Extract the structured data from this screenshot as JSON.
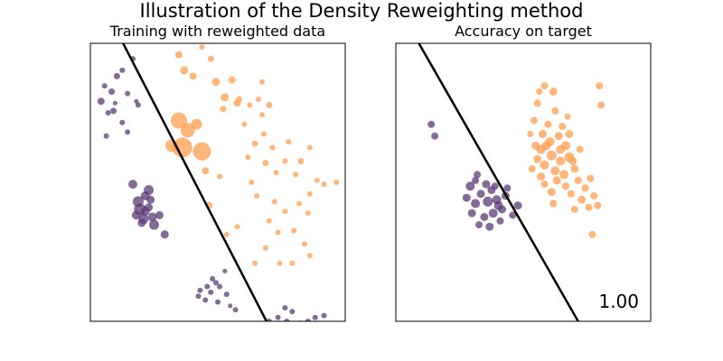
{
  "figure": {
    "suptitle": "Illustration of the Density Reweighting method"
  },
  "colors": {
    "class_0": "#5b3a76",
    "class_1": "#fd9d4f",
    "boundary": "#000000"
  },
  "chart_data": [
    {
      "type": "scatter",
      "title": "Training with reweighted data",
      "xlim": [
        -3.6,
        3.6
      ],
      "ylim": [
        -3.6,
        3.6
      ],
      "grid": false,
      "axes_visible": false,
      "decision_boundary": [
        [
          -2.9,
          4.0
        ],
        [
          1.6,
          -4.0
        ]
      ],
      "series": [
        {
          "class": 0,
          "points": [
            [
              -3.3,
              2.1,
              8
            ],
            [
              -3.2,
              2.5,
              6
            ],
            [
              -3.0,
              2.35,
              7
            ],
            [
              -2.9,
              2.05,
              5
            ],
            [
              -2.85,
              2.75,
              7
            ],
            [
              -2.7,
              2.9,
              6
            ],
            [
              -2.4,
              3.2,
              6
            ],
            [
              -2.25,
              2.0,
              6
            ],
            [
              -3.1,
              1.8,
              6
            ],
            [
              -2.7,
              1.55,
              6
            ],
            [
              -3.15,
              1.2,
              6
            ],
            [
              -2.95,
              1.85,
              7
            ],
            [
              -2.55,
              2.3,
              6
            ],
            [
              -2.3,
              2.1,
              5
            ],
            [
              -2.55,
              1.3,
              6
            ],
            [
              -2.4,
              -0.05,
              10
            ],
            [
              -1.95,
              -0.2,
              11
            ],
            [
              -2.25,
              -0.5,
              12
            ],
            [
              -2.05,
              -0.35,
              10
            ],
            [
              -2.2,
              -0.7,
              13
            ],
            [
              -2.1,
              -0.95,
              11
            ],
            [
              -1.85,
              -0.9,
              10
            ],
            [
              -2.15,
              -1.05,
              9
            ],
            [
              -1.65,
              -0.85,
              9
            ],
            [
              -2.3,
              -0.85,
              10
            ],
            [
              -1.95,
              -0.65,
              9
            ],
            [
              -1.8,
              -1.1,
              11
            ],
            [
              -1.5,
              -1.35,
              9
            ],
            [
              -2.05,
              -0.75,
              10
            ],
            [
              -1.9,
              -0.45,
              9
            ],
            [
              -0.5,
              -2.8,
              6
            ],
            [
              -0.15,
              -2.5,
              6
            ],
            [
              0.05,
              -2.7,
              6
            ],
            [
              -0.35,
              -3.05,
              6
            ],
            [
              0.0,
              -3.1,
              6
            ],
            [
              -0.2,
              -2.85,
              6
            ],
            [
              -0.55,
              -2.95,
              6
            ],
            [
              0.25,
              -2.9,
              6
            ],
            [
              -0.05,
              -2.6,
              6
            ],
            [
              -0.3,
              -2.7,
              6
            ],
            [
              0.35,
              -3.2,
              5
            ],
            [
              -0.1,
              -3.7,
              6
            ],
            [
              0.2,
              -2.3,
              5
            ],
            [
              0.5,
              -3.3,
              6
            ],
            [
              1.7,
              -3.5,
              6
            ],
            [
              1.95,
              -3.6,
              6
            ],
            [
              2.1,
              -3.35,
              6
            ],
            [
              2.3,
              -3.65,
              6
            ],
            [
              2.55,
              -3.6,
              6
            ],
            [
              2.75,
              -3.5,
              6
            ],
            [
              3.0,
              -3.45,
              6
            ],
            [
              2.6,
              -3.85,
              6
            ],
            [
              2.05,
              -3.9,
              6
            ],
            [
              2.8,
              -3.8,
              6
            ],
            [
              2.95,
              -3.7,
              6
            ],
            [
              2.5,
              -3.75,
              6
            ],
            [
              1.45,
              -3.6,
              6
            ],
            [
              1.9,
              -3.25,
              6
            ]
          ]
        },
        {
          "class": 1,
          "points": [
            [
              -1.1,
              3.3,
              8
            ],
            [
              -0.95,
              2.9,
              9
            ],
            [
              -0.7,
              2.75,
              8
            ],
            [
              -0.45,
              3.5,
              6
            ],
            [
              -0.2,
              3.2,
              7
            ],
            [
              -0.05,
              2.6,
              9
            ],
            [
              0.4,
              2.65,
              8
            ],
            [
              0.2,
              2.2,
              9
            ],
            [
              0.55,
              2.05,
              8
            ],
            [
              -1.1,
              1.6,
              18
            ],
            [
              -0.85,
              1.35,
              16
            ],
            [
              -0.6,
              1.5,
              12
            ],
            [
              -1.3,
              0.95,
              14
            ],
            [
              -1.0,
              0.9,
              22
            ],
            [
              -0.45,
              0.8,
              20
            ],
            [
              -0.35,
              0.3,
              8
            ],
            [
              -0.25,
              -0.6,
              8
            ],
            [
              0.15,
              1.9,
              7
            ],
            [
              0.6,
              2.15,
              7
            ],
            [
              0.9,
              2.0,
              6
            ],
            [
              1.15,
              2.15,
              6
            ],
            [
              1.45,
              2.0,
              7
            ],
            [
              1.25,
              1.75,
              6
            ],
            [
              0.75,
              1.5,
              6
            ],
            [
              1.3,
              1.25,
              6
            ],
            [
              1.05,
              1.0,
              7
            ],
            [
              0.85,
              0.65,
              6
            ],
            [
              1.35,
              0.5,
              7
            ],
            [
              1.55,
              0.9,
              6
            ],
            [
              1.9,
              0.55,
              6
            ],
            [
              2.2,
              0.2,
              6
            ],
            [
              2.35,
              0.55,
              7
            ],
            [
              2.6,
              0.9,
              6
            ],
            [
              1.65,
              0.25,
              6
            ],
            [
              0.95,
              0.0,
              6
            ],
            [
              1.1,
              -0.35,
              6
            ],
            [
              1.6,
              -0.5,
              6
            ],
            [
              1.9,
              -0.75,
              6
            ],
            [
              1.45,
              -1.0,
              6
            ],
            [
              1.7,
              -1.3,
              6
            ],
            [
              2.3,
              -0.55,
              6
            ],
            [
              2.6,
              -0.3,
              6
            ],
            [
              3.0,
              -0.05,
              6
            ],
            [
              3.35,
              0.0,
              6
            ],
            [
              2.8,
              0.05,
              6
            ],
            [
              2.15,
              -1.25,
              6
            ],
            [
              2.45,
              -1.6,
              6
            ],
            [
              2.6,
              -1.9,
              6
            ],
            [
              2.1,
              -2.1,
              6
            ],
            [
              1.75,
              -2.1,
              6
            ],
            [
              1.05,
              -2.1,
              6
            ],
            [
              1.35,
              -1.7,
              6
            ],
            [
              0.25,
              -1.35,
              6
            ],
            [
              0.55,
              -1.15,
              6
            ],
            [
              0.05,
              0.15,
              6
            ],
            [
              1.25,
              2.6,
              6
            ],
            [
              2.0,
              1.05,
              6
            ],
            [
              2.55,
              -0.8,
              6
            ]
          ]
        }
      ]
    },
    {
      "type": "scatter",
      "title": "Accuracy on target",
      "xlim": [
        -3.6,
        3.6
      ],
      "ylim": [
        -3.6,
        3.6
      ],
      "grid": false,
      "axes_visible": false,
      "score": "1.00",
      "decision_boundary": [
        [
          -3.2,
          4.0
        ],
        [
          1.8,
          -4.0
        ]
      ],
      "series": [
        {
          "class": 0,
          "points": [
            [
              -2.5,
              1.2,
              8
            ],
            [
              -2.6,
              1.5,
              8
            ],
            [
              -1.3,
              0.2,
              8
            ],
            [
              -1.5,
              -0.1,
              10
            ],
            [
              -1.2,
              -0.3,
              9
            ],
            [
              -1.0,
              -0.5,
              11
            ],
            [
              -1.35,
              -0.55,
              10
            ],
            [
              -1.6,
              -0.4,
              9
            ],
            [
              -0.9,
              -0.2,
              9
            ],
            [
              -0.75,
              -0.45,
              10
            ],
            [
              -0.6,
              -0.7,
              9
            ],
            [
              -0.85,
              -0.8,
              10
            ],
            [
              -1.1,
              -0.9,
              9
            ],
            [
              -0.65,
              -1.0,
              8
            ],
            [
              -0.95,
              -1.15,
              9
            ],
            [
              -0.5,
              -0.35,
              9
            ],
            [
              -1.25,
              -1.1,
              8
            ],
            [
              -0.3,
              -0.85,
              8
            ],
            [
              -0.15,
              -0.6,
              9
            ],
            [
              -1.45,
              -0.8,
              9
            ],
            [
              -0.45,
              -0.15,
              8
            ],
            [
              -0.8,
              -0.1,
              8
            ],
            [
              -0.7,
              -0.6,
              10
            ],
            [
              -1.05,
              -0.05,
              9
            ],
            [
              -1.35,
              0.05,
              8
            ]
          ]
        },
        {
          "class": 1,
          "points": [
            [
              0.6,
              2.5,
              8
            ],
            [
              0.4,
              2.05,
              8
            ],
            [
              0.85,
              2.35,
              9
            ],
            [
              0.9,
              1.85,
              8
            ],
            [
              0.3,
              1.6,
              8
            ],
            [
              0.55,
              1.25,
              9
            ],
            [
              0.75,
              1.05,
              10
            ],
            [
              1.0,
              1.2,
              9
            ],
            [
              1.2,
              0.95,
              10
            ],
            [
              0.5,
              0.85,
              10
            ],
            [
              0.8,
              0.7,
              11
            ],
            [
              1.05,
              0.55,
              10
            ],
            [
              1.3,
              0.65,
              11
            ],
            [
              0.6,
              0.45,
              10
            ],
            [
              0.9,
              0.3,
              10
            ],
            [
              1.15,
              0.2,
              10
            ],
            [
              1.45,
              0.35,
              9
            ],
            [
              0.5,
              0.15,
              9
            ],
            [
              1.6,
              0.85,
              8
            ],
            [
              0.4,
              0.6,
              9
            ],
            [
              0.7,
              1.5,
              8
            ],
            [
              1.1,
              1.45,
              8
            ],
            [
              0.35,
              0.95,
              9
            ],
            [
              1.3,
              1.25,
              9
            ],
            [
              0.95,
              0.05,
              9
            ],
            [
              1.2,
              -0.1,
              8
            ],
            [
              0.6,
              -0.05,
              8
            ],
            [
              0.8,
              -0.25,
              9
            ],
            [
              1.35,
              -0.3,
              8
            ],
            [
              1.55,
              0.05,
              8
            ],
            [
              1.75,
              -0.15,
              8
            ],
            [
              1.9,
              0.1,
              8
            ],
            [
              1.65,
              -0.45,
              9
            ],
            [
              2.0,
              -0.35,
              8
            ],
            [
              1.45,
              -0.7,
              8
            ],
            [
              1.85,
              -0.65,
              8
            ],
            [
              2.1,
              -0.6,
              8
            ],
            [
              2.15,
              2.5,
              8
            ],
            [
              2.2,
              2.0,
              8
            ],
            [
              0.25,
              0.35,
              8
            ],
            [
              1.05,
              0.85,
              10
            ],
            [
              0.65,
              0.95,
              10
            ],
            [
              1.4,
              0.55,
              9
            ],
            [
              0.85,
              -0.55,
              8
            ],
            [
              1.95,
              -1.35,
              8
            ],
            [
              0.45,
              2.35,
              7
            ],
            [
              1.25,
              1.7,
              7
            ],
            [
              0.2,
              1.25,
              7
            ]
          ]
        }
      ]
    }
  ]
}
